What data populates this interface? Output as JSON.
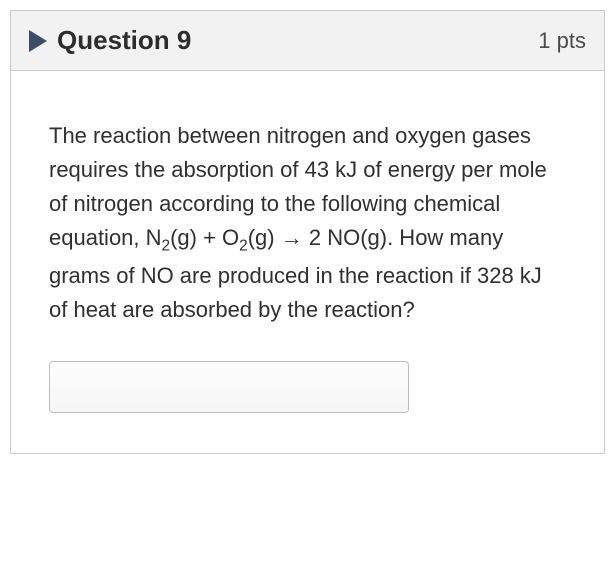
{
  "header": {
    "title": "Question 9",
    "points": "1 pts"
  },
  "question": {
    "text_pre": "The reaction between nitrogen and oxygen gases requires the absorption of 43 kJ of energy per mole of nitrogen according to the following chemical equation, N",
    "sub1": "2",
    "mid1": "(g)  +  O",
    "sub2": "2",
    "mid2": "(g)  →  2 NO(g).  How many grams of NO are produced in the reaction if 328 kJ of heat are absorbed by the reaction?"
  },
  "answer": {
    "value": ""
  },
  "colors": {
    "header_bg": "#f2f2f2",
    "border": "#cccccc",
    "flag": "#3b4e66",
    "text": "#303030"
  }
}
